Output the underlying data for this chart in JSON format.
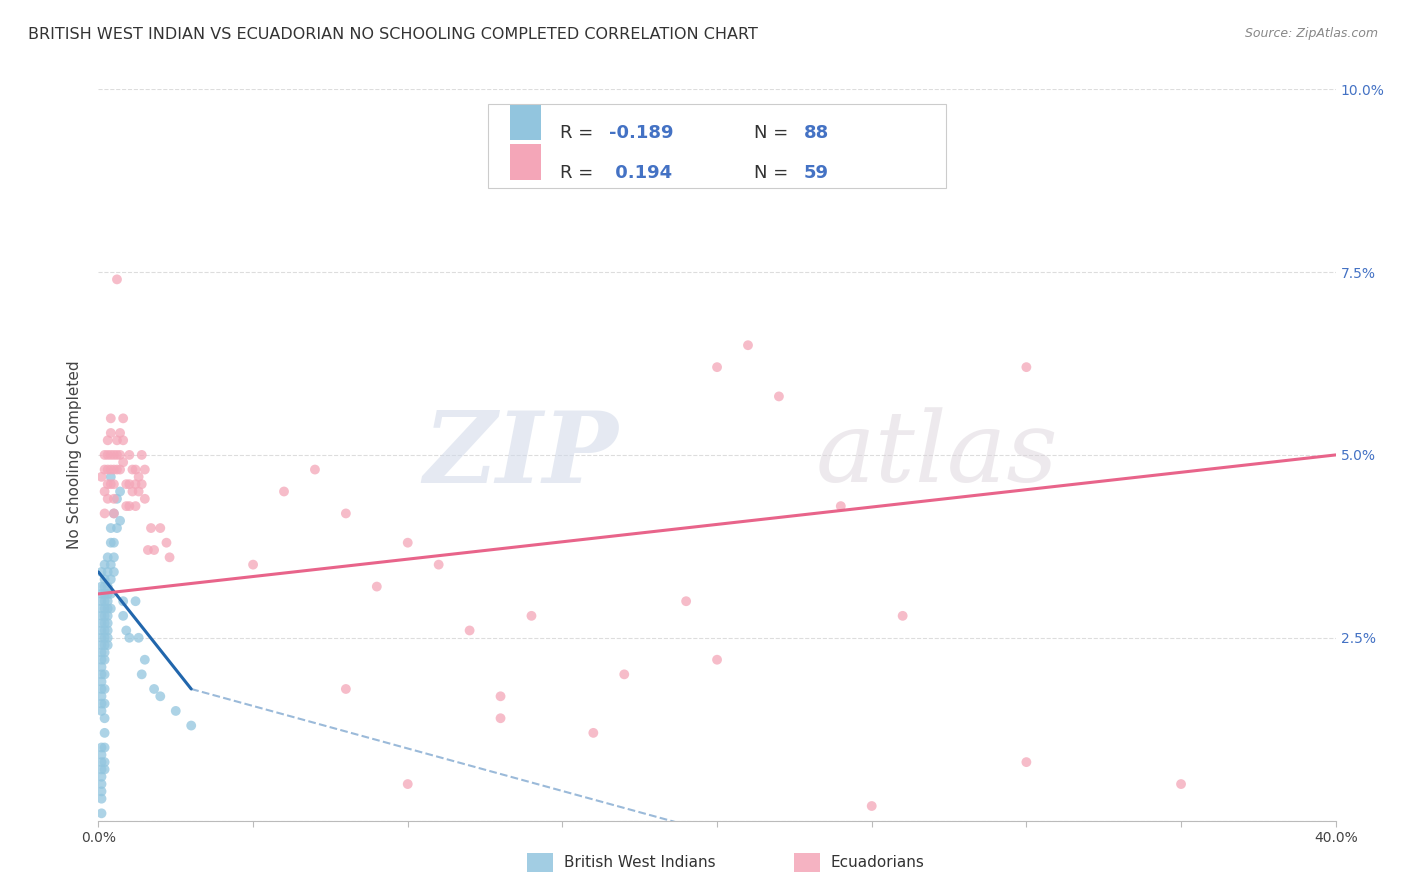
{
  "title": "BRITISH WEST INDIAN VS ECUADORIAN NO SCHOOLING COMPLETED CORRELATION CHART",
  "source": "Source: ZipAtlas.com",
  "ylabel_label": "No Schooling Completed",
  "xlim": [
    0.0,
    0.4
  ],
  "ylim": [
    0.0,
    0.1
  ],
  "color_blue": "#92c5de",
  "color_pink": "#f4a6b8",
  "line_blue": "#2166ac",
  "line_pink": "#e8648a",
  "watermark_zip": "ZIP",
  "watermark_atlas": "atlas",
  "background": "#ffffff",
  "grid_color": "#dddddd",
  "blue_scatter": [
    [
      0.001,
      0.034
    ],
    [
      0.001,
      0.032
    ],
    [
      0.001,
      0.031
    ],
    [
      0.001,
      0.03
    ],
    [
      0.001,
      0.029
    ],
    [
      0.001,
      0.028
    ],
    [
      0.001,
      0.027
    ],
    [
      0.001,
      0.026
    ],
    [
      0.001,
      0.025
    ],
    [
      0.001,
      0.024
    ],
    [
      0.001,
      0.023
    ],
    [
      0.001,
      0.022
    ],
    [
      0.001,
      0.021
    ],
    [
      0.001,
      0.02
    ],
    [
      0.001,
      0.019
    ],
    [
      0.001,
      0.018
    ],
    [
      0.001,
      0.017
    ],
    [
      0.001,
      0.016
    ],
    [
      0.001,
      0.015
    ],
    [
      0.001,
      0.01
    ],
    [
      0.001,
      0.009
    ],
    [
      0.001,
      0.008
    ],
    [
      0.001,
      0.007
    ],
    [
      0.001,
      0.006
    ],
    [
      0.001,
      0.005
    ],
    [
      0.001,
      0.004
    ],
    [
      0.001,
      0.003
    ],
    [
      0.001,
      0.001
    ],
    [
      0.002,
      0.035
    ],
    [
      0.002,
      0.033
    ],
    [
      0.002,
      0.032
    ],
    [
      0.002,
      0.031
    ],
    [
      0.002,
      0.03
    ],
    [
      0.002,
      0.029
    ],
    [
      0.002,
      0.028
    ],
    [
      0.002,
      0.027
    ],
    [
      0.002,
      0.026
    ],
    [
      0.002,
      0.025
    ],
    [
      0.002,
      0.024
    ],
    [
      0.002,
      0.023
    ],
    [
      0.002,
      0.022
    ],
    [
      0.002,
      0.02
    ],
    [
      0.002,
      0.018
    ],
    [
      0.002,
      0.016
    ],
    [
      0.002,
      0.014
    ],
    [
      0.002,
      0.012
    ],
    [
      0.002,
      0.01
    ],
    [
      0.002,
      0.008
    ],
    [
      0.002,
      0.007
    ],
    [
      0.003,
      0.036
    ],
    [
      0.003,
      0.034
    ],
    [
      0.003,
      0.032
    ],
    [
      0.003,
      0.031
    ],
    [
      0.003,
      0.03
    ],
    [
      0.003,
      0.029
    ],
    [
      0.003,
      0.028
    ],
    [
      0.003,
      0.027
    ],
    [
      0.003,
      0.026
    ],
    [
      0.003,
      0.025
    ],
    [
      0.003,
      0.024
    ],
    [
      0.004,
      0.047
    ],
    [
      0.004,
      0.04
    ],
    [
      0.004,
      0.038
    ],
    [
      0.004,
      0.035
    ],
    [
      0.004,
      0.033
    ],
    [
      0.004,
      0.031
    ],
    [
      0.004,
      0.029
    ],
    [
      0.005,
      0.042
    ],
    [
      0.005,
      0.038
    ],
    [
      0.005,
      0.036
    ],
    [
      0.005,
      0.034
    ],
    [
      0.006,
      0.044
    ],
    [
      0.006,
      0.04
    ],
    [
      0.007,
      0.045
    ],
    [
      0.007,
      0.041
    ],
    [
      0.008,
      0.03
    ],
    [
      0.008,
      0.028
    ],
    [
      0.009,
      0.026
    ],
    [
      0.01,
      0.025
    ],
    [
      0.012,
      0.03
    ],
    [
      0.013,
      0.025
    ],
    [
      0.014,
      0.02
    ],
    [
      0.015,
      0.022
    ],
    [
      0.018,
      0.018
    ],
    [
      0.02,
      0.017
    ],
    [
      0.025,
      0.015
    ],
    [
      0.03,
      0.013
    ]
  ],
  "pink_scatter": [
    [
      0.001,
      0.047
    ],
    [
      0.002,
      0.05
    ],
    [
      0.002,
      0.048
    ],
    [
      0.002,
      0.045
    ],
    [
      0.002,
      0.042
    ],
    [
      0.003,
      0.052
    ],
    [
      0.003,
      0.05
    ],
    [
      0.003,
      0.048
    ],
    [
      0.003,
      0.046
    ],
    [
      0.003,
      0.044
    ],
    [
      0.004,
      0.055
    ],
    [
      0.004,
      0.053
    ],
    [
      0.004,
      0.05
    ],
    [
      0.004,
      0.048
    ],
    [
      0.004,
      0.046
    ],
    [
      0.005,
      0.05
    ],
    [
      0.005,
      0.048
    ],
    [
      0.005,
      0.046
    ],
    [
      0.005,
      0.044
    ],
    [
      0.005,
      0.042
    ],
    [
      0.006,
      0.052
    ],
    [
      0.006,
      0.05
    ],
    [
      0.006,
      0.048
    ],
    [
      0.006,
      0.074
    ],
    [
      0.007,
      0.053
    ],
    [
      0.007,
      0.05
    ],
    [
      0.007,
      0.048
    ],
    [
      0.008,
      0.055
    ],
    [
      0.008,
      0.052
    ],
    [
      0.008,
      0.049
    ],
    [
      0.009,
      0.046
    ],
    [
      0.009,
      0.043
    ],
    [
      0.01,
      0.05
    ],
    [
      0.01,
      0.046
    ],
    [
      0.01,
      0.043
    ],
    [
      0.011,
      0.048
    ],
    [
      0.011,
      0.045
    ],
    [
      0.012,
      0.048
    ],
    [
      0.012,
      0.046
    ],
    [
      0.012,
      0.043
    ],
    [
      0.013,
      0.047
    ],
    [
      0.013,
      0.045
    ],
    [
      0.014,
      0.05
    ],
    [
      0.014,
      0.046
    ],
    [
      0.015,
      0.048
    ],
    [
      0.015,
      0.044
    ],
    [
      0.016,
      0.037
    ],
    [
      0.017,
      0.04
    ],
    [
      0.018,
      0.037
    ],
    [
      0.02,
      0.04
    ],
    [
      0.022,
      0.038
    ],
    [
      0.023,
      0.036
    ],
    [
      0.15,
      0.09
    ],
    [
      0.2,
      0.062
    ],
    [
      0.21,
      0.065
    ],
    [
      0.22,
      0.058
    ],
    [
      0.24,
      0.043
    ],
    [
      0.26,
      0.028
    ],
    [
      0.3,
      0.062
    ],
    [
      0.08,
      0.018
    ],
    [
      0.13,
      0.014
    ],
    [
      0.16,
      0.012
    ],
    [
      0.17,
      0.02
    ],
    [
      0.19,
      0.03
    ],
    [
      0.2,
      0.022
    ],
    [
      0.12,
      0.026
    ],
    [
      0.14,
      0.028
    ],
    [
      0.11,
      0.035
    ],
    [
      0.1,
      0.038
    ],
    [
      0.09,
      0.032
    ],
    [
      0.08,
      0.042
    ],
    [
      0.06,
      0.045
    ],
    [
      0.05,
      0.035
    ],
    [
      0.07,
      0.048
    ],
    [
      0.35,
      0.005
    ],
    [
      0.3,
      0.008
    ],
    [
      0.25,
      0.002
    ],
    [
      0.1,
      0.005
    ],
    [
      0.13,
      0.017
    ]
  ],
  "blue_line_solid": [
    [
      0.0,
      0.034
    ],
    [
      0.03,
      0.018
    ]
  ],
  "blue_line_dash": [
    [
      0.03,
      0.018
    ],
    [
      0.4,
      -0.025
    ]
  ],
  "pink_line_solid": [
    [
      0.0,
      0.031
    ],
    [
      0.4,
      0.05
    ]
  ]
}
